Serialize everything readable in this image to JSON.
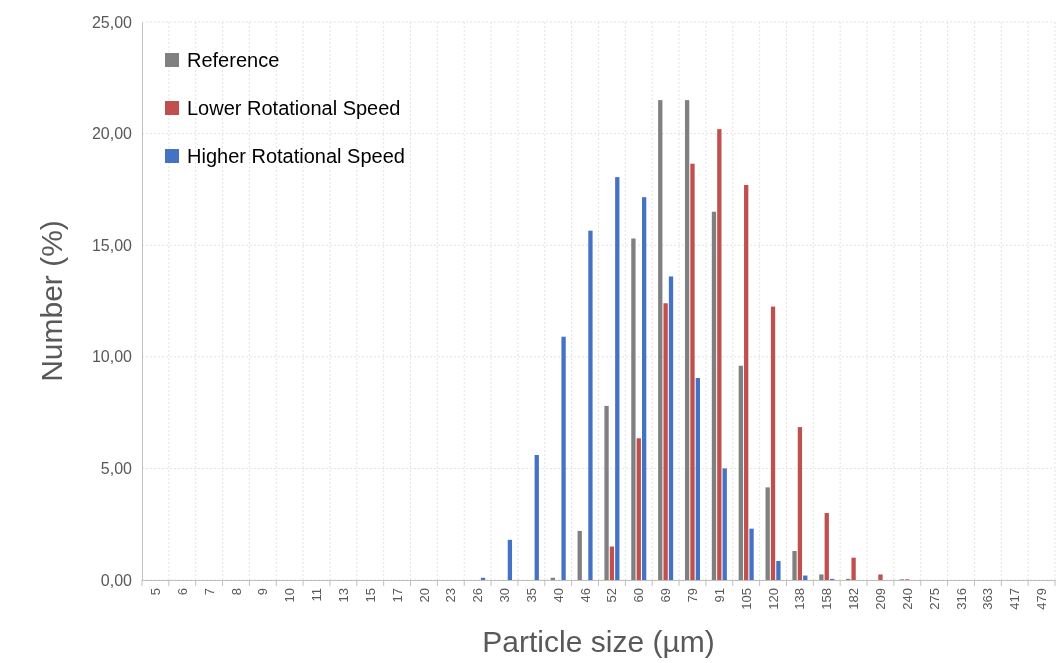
{
  "chart_data": {
    "type": "bar",
    "xlabel": "Particle size (µm)",
    "ylabel": "Number (%)",
    "categories": [
      "5",
      "6",
      "7",
      "8",
      "9",
      "10",
      "11",
      "13",
      "15",
      "17",
      "20",
      "23",
      "26",
      "30",
      "35",
      "40",
      "46",
      "52",
      "60",
      "69",
      "79",
      "91",
      "105",
      "120",
      "138",
      "158",
      "182",
      "209",
      "240",
      "275",
      "316",
      "363",
      "417",
      "479"
    ],
    "series": [
      {
        "name": "Reference",
        "color": "#808080",
        "values": [
          0,
          0,
          0,
          0,
          0,
          0,
          0,
          0,
          0,
          0,
          0,
          0,
          0,
          0,
          0,
          0.1,
          2.2,
          7.8,
          15.3,
          21.5,
          21.5,
          16.5,
          9.6,
          4.15,
          1.3,
          0.25,
          0.05,
          0,
          0.03,
          0,
          0,
          0,
          0,
          0
        ]
      },
      {
        "name": "Lower Rotational Speed",
        "color": "#c0504d",
        "values": [
          0,
          0,
          0,
          0,
          0,
          0,
          0,
          0,
          0,
          0,
          0,
          0,
          0,
          0,
          0,
          0,
          0,
          1.5,
          6.35,
          12.4,
          18.65,
          20.2,
          17.7,
          12.25,
          6.85,
          3.0,
          1.0,
          0.25,
          0.03,
          0,
          0,
          0,
          0,
          0
        ]
      },
      {
        "name": "Higher Rotational Speed",
        "color": "#4472c4",
        "values": [
          0,
          0,
          0,
          0,
          0,
          0,
          0,
          0,
          0,
          0,
          0,
          0,
          0.1,
          1.8,
          5.6,
          10.9,
          15.65,
          18.05,
          17.15,
          13.6,
          9.05,
          5.0,
          2.3,
          0.85,
          0.2,
          0.05,
          0,
          0,
          0,
          0,
          0,
          0,
          0,
          0
        ]
      }
    ],
    "ylim": [
      0,
      25
    ],
    "yticks": [
      {
        "value": 0,
        "label": "0,00"
      },
      {
        "value": 5,
        "label": "5,00"
      },
      {
        "value": 10,
        "label": "10,00"
      },
      {
        "value": 15,
        "label": "15,00"
      },
      {
        "value": 20,
        "label": "20,00"
      },
      {
        "value": 25,
        "label": "25,00"
      }
    ],
    "grid": true,
    "legend": "top left"
  }
}
